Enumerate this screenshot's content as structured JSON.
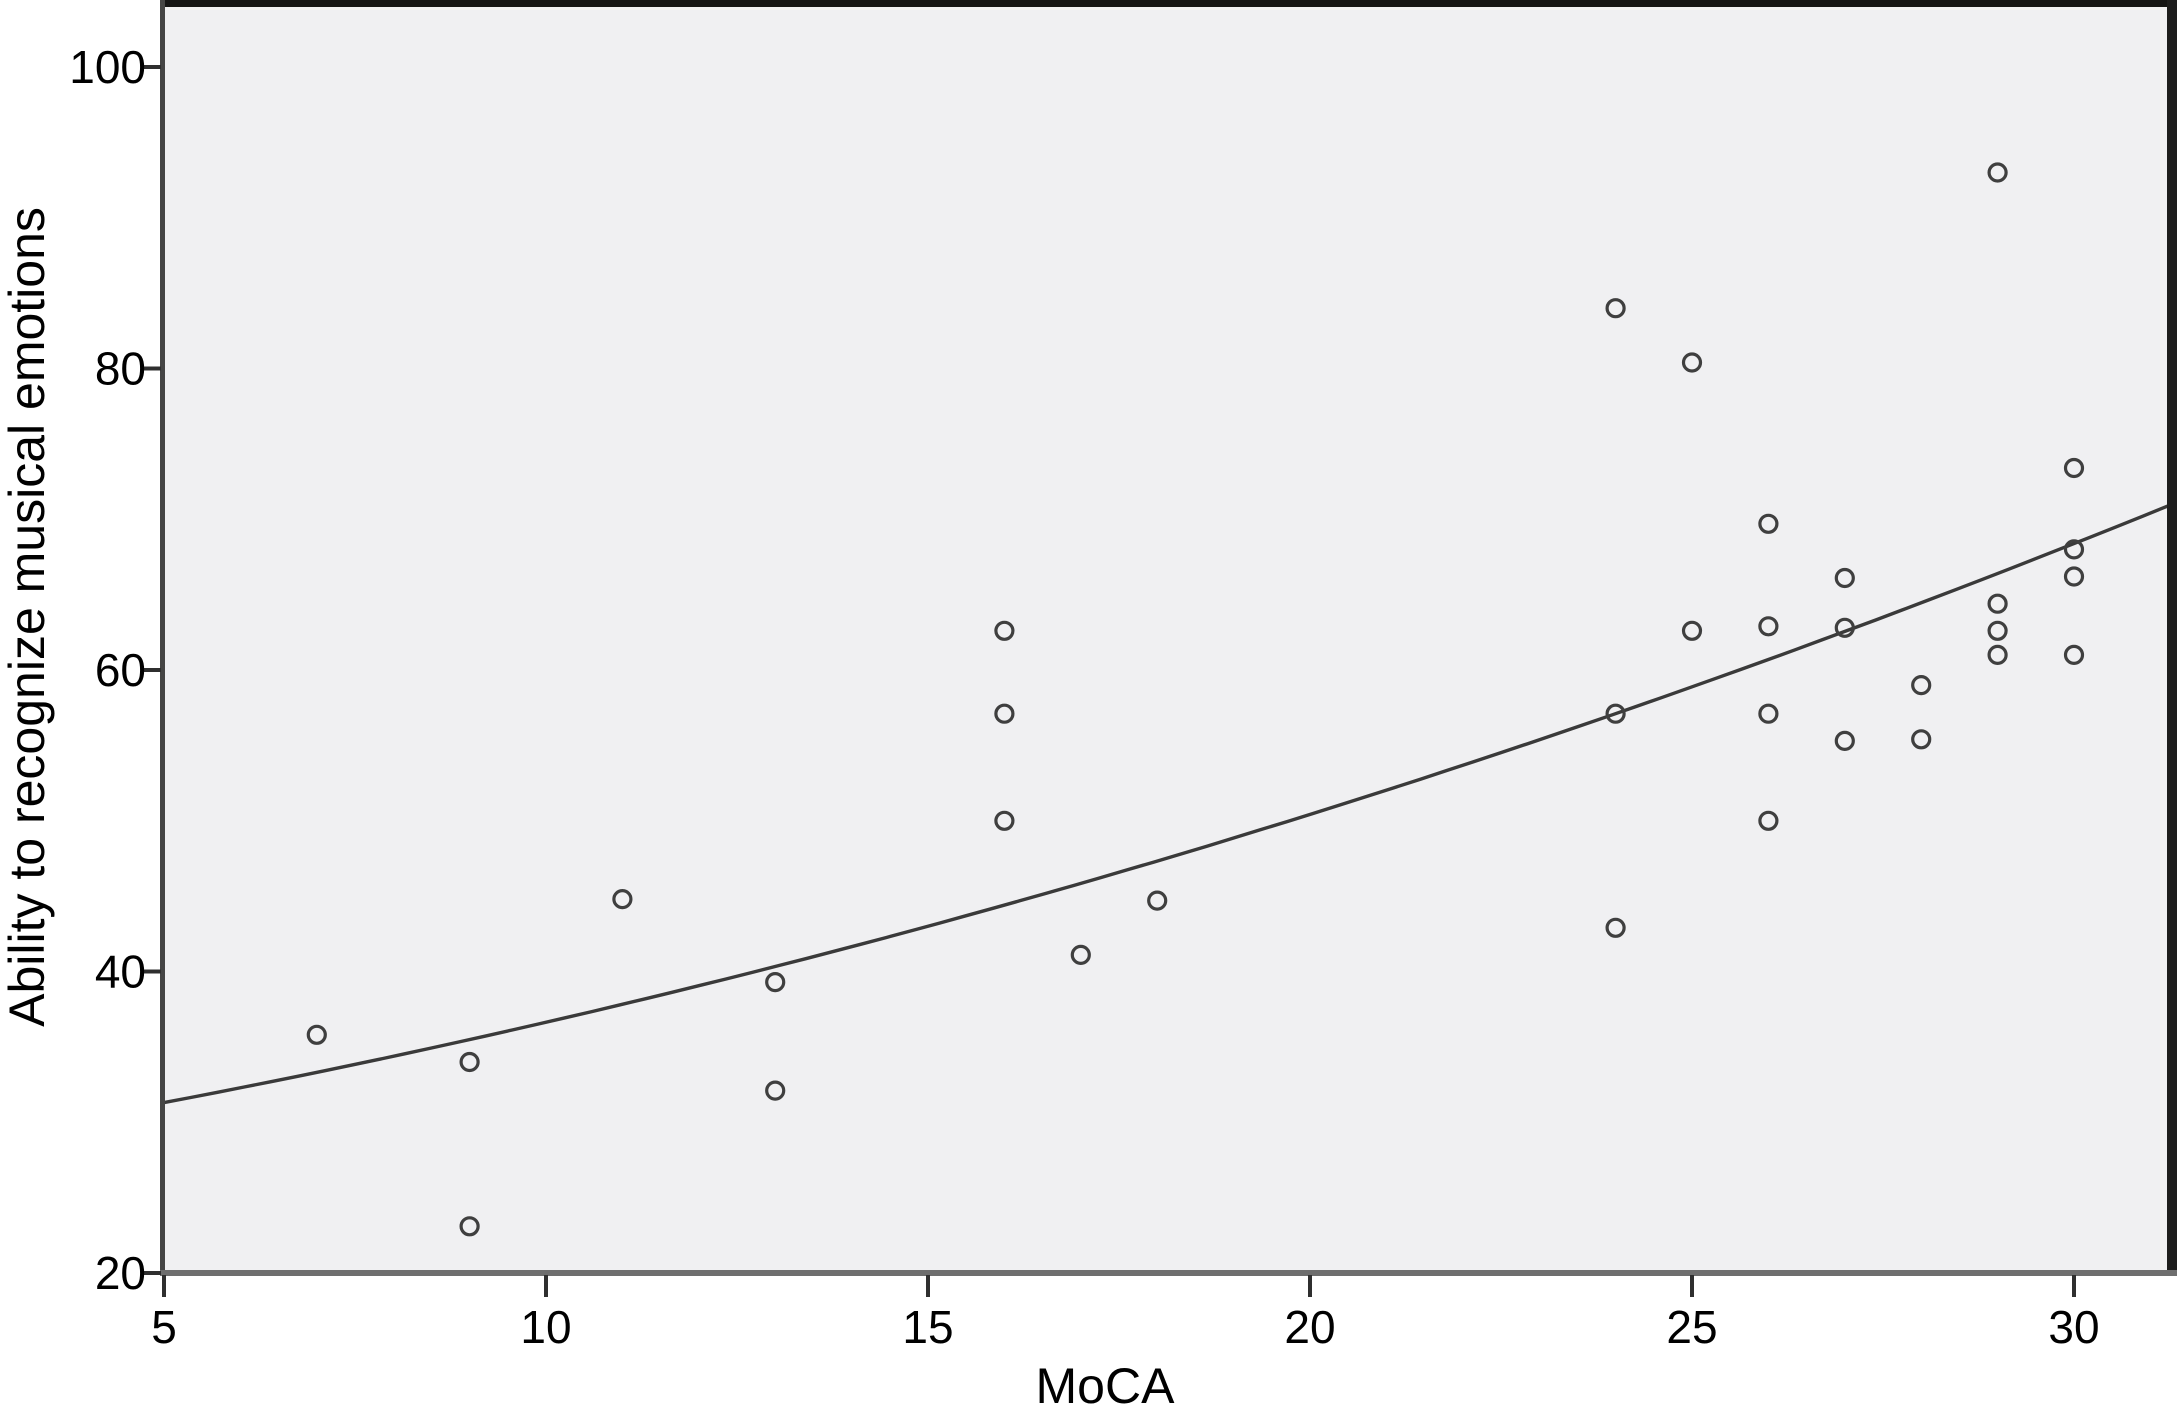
{
  "chart_data": {
    "type": "scatter",
    "title": "",
    "xlabel": "MoCA",
    "ylabel": "Ability to recognize musical emotions",
    "xlim": [
      5,
      31.35
    ],
    "ylim": [
      20,
      103.5
    ],
    "x_ticks": [
      5,
      10,
      15,
      20,
      25,
      30
    ],
    "y_ticks": [
      20,
      40,
      60,
      80,
      100
    ],
    "grid": false,
    "legend_position": "none",
    "marker_style": "open-circle",
    "points": [
      [
        7,
        35.8
      ],
      [
        9,
        34.0
      ],
      [
        9,
        23.1
      ],
      [
        11,
        44.8
      ],
      [
        13,
        39.3
      ],
      [
        13,
        32.1
      ],
      [
        16,
        62.6
      ],
      [
        16,
        57.1
      ],
      [
        16,
        50.0
      ],
      [
        17,
        41.1
      ],
      [
        18,
        44.7
      ],
      [
        24,
        84.0
      ],
      [
        24,
        57.1
      ],
      [
        24,
        42.9
      ],
      [
        25,
        80.4
      ],
      [
        25,
        62.6
      ],
      [
        26,
        69.7
      ],
      [
        26,
        62.9
      ],
      [
        26,
        57.1
      ],
      [
        26,
        50.0
      ],
      [
        27,
        66.1
      ],
      [
        27,
        62.8
      ],
      [
        27,
        55.3
      ],
      [
        28,
        59.0
      ],
      [
        28,
        55.4
      ],
      [
        29,
        93.0
      ],
      [
        29,
        64.4
      ],
      [
        29,
        62.6
      ],
      [
        29,
        61.0
      ],
      [
        30,
        73.4
      ],
      [
        30,
        68.0
      ],
      [
        30,
        66.2
      ],
      [
        30,
        61.0
      ]
    ],
    "trendline": {
      "type": "quadratic",
      "coeffs": {
        "a": 27.02,
        "b": 0.7524,
        "c": 0.02088
      },
      "x_range": [
        5,
        31.35
      ]
    },
    "colors": {
      "plot_bg": "#f0f0f2",
      "page_bg": "#ffffff",
      "marker_stroke": "#3f3f3f",
      "curve": "#3a3a3a",
      "axis_line": "#6e6e6e",
      "tick_mark": "#2f2f2f",
      "frame_top": "#141414",
      "frame_left": "#454545",
      "frame_right": "#1c1c1c",
      "text": "#000000"
    }
  }
}
